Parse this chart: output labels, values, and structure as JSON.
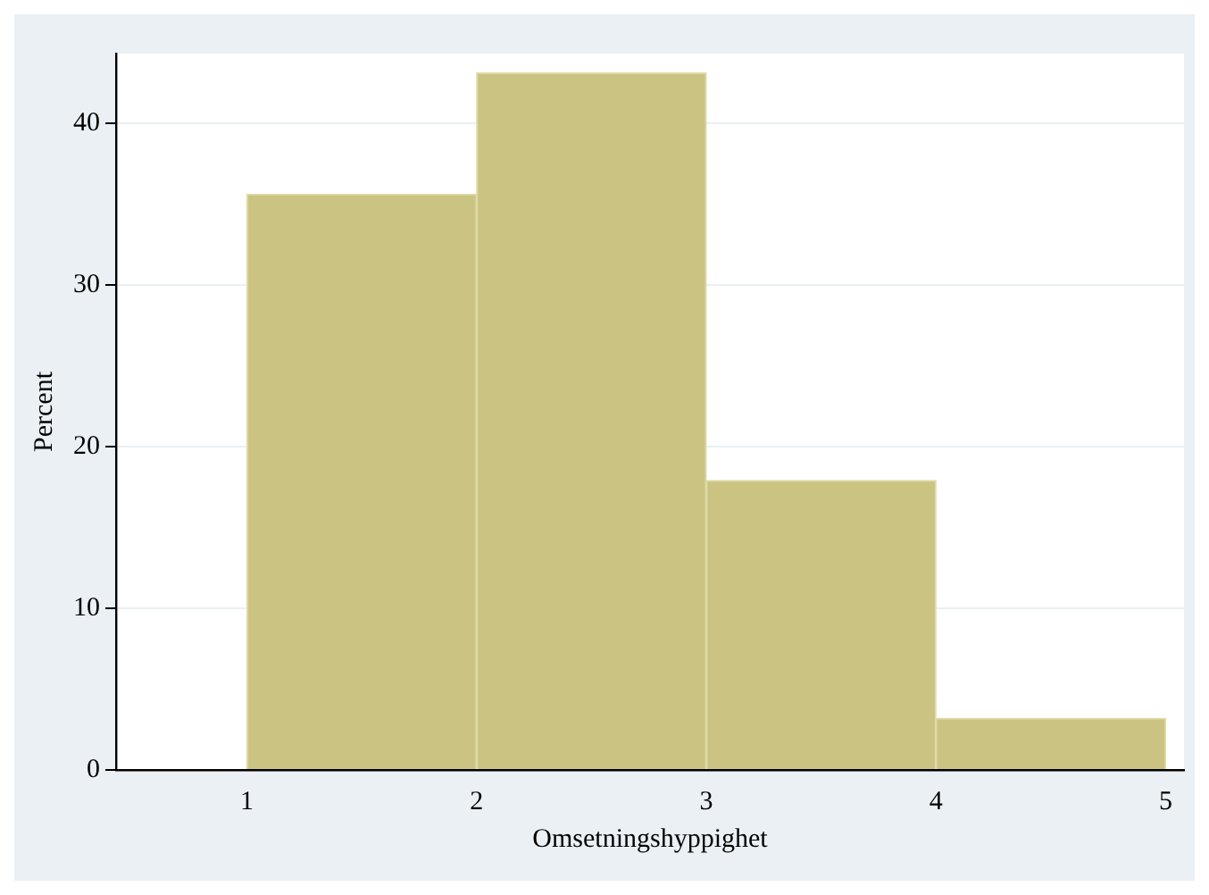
{
  "chart_data": {
    "type": "histogram",
    "xlabel": "Omsetningshyppighet",
    "ylabel": "Percent",
    "bins": [
      1,
      2,
      3,
      4,
      5
    ],
    "values": [
      35.6,
      43.1,
      17.9,
      3.2
    ],
    "color": "#cbc382",
    "xlim": [
      0.43,
      5.08
    ],
    "xticks": [
      1,
      2,
      3,
      4,
      5
    ],
    "ylim": [
      0,
      44.3
    ],
    "yticks": [
      0,
      10,
      20,
      30,
      40
    ],
    "grid": "y"
  }
}
